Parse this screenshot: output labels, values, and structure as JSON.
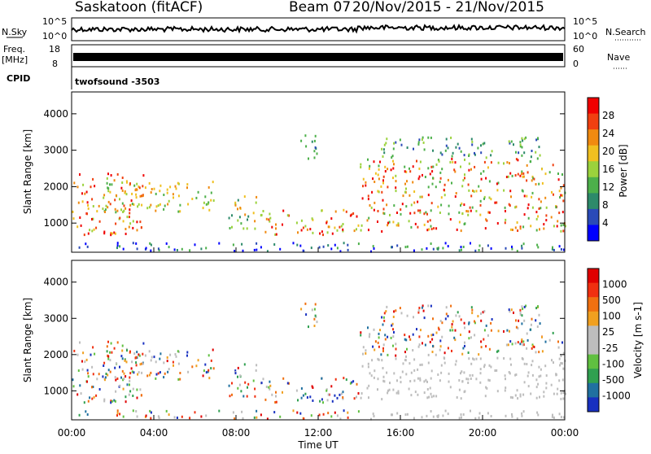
{
  "header": {
    "station": "Saskatoon (fitACF)",
    "beam": "Beam 07",
    "date_range": "20/Nov/2015 - 21/Nov/2015"
  },
  "strip_panels": {
    "nsky": {
      "label": "N.Sky",
      "tick_top": "10^5",
      "tick_bottom": "10^0"
    },
    "nsearch": {
      "label": "N.Search",
      "tick_top": "10^5",
      "tick_bottom": "10^0"
    },
    "freq": {
      "label_line1": "Freq.",
      "label_line2": "[MHz]",
      "tick_top": "18",
      "tick_bottom": "8"
    },
    "nave": {
      "label": "Nave",
      "tick_top": "60",
      "tick_bottom": "0"
    },
    "cpid": {
      "label": "CPID",
      "text": "twofsound -3503"
    }
  },
  "chart_data": [
    {
      "type": "heatmap",
      "name": "power-panel",
      "ylabel": "Slant Range [km]",
      "y_ticks": [
        "1000",
        "2000",
        "3000",
        "4000"
      ],
      "ylim": [
        200,
        4600
      ],
      "xlim_hours": [
        0,
        24
      ],
      "colorbar": {
        "label": "Power [dB]",
        "ticks": [
          "4",
          "8",
          "12",
          "16",
          "20",
          "24",
          "28"
        ],
        "colors": [
          "#0000ff",
          "#2a4ab8",
          "#2d8a6a",
          "#4db04a",
          "#9bd23c",
          "#f0c020",
          "#f08a10",
          "#f04010",
          "#f00000"
        ]
      }
    },
    {
      "type": "heatmap",
      "name": "velocity-panel",
      "ylabel": "Slant Range [km]",
      "y_ticks": [
        "1000",
        "2000",
        "3000",
        "4000"
      ],
      "ylim": [
        200,
        4600
      ],
      "xlim_hours": [
        0,
        24
      ],
      "colorbar": {
        "label": "Velocity [m s-1]",
        "ticks": [
          "1000",
          "500",
          "100",
          "25",
          "-25",
          "-100",
          "-500",
          "-1000"
        ],
        "colors": [
          "#1830c0",
          "#2070a0",
          "#30a050",
          "#60c040",
          "#bdbdbd",
          "#bdbdbd",
          "#f0a020",
          "#f07010",
          "#f03010",
          "#e00000"
        ]
      }
    }
  ],
  "x_axis": {
    "ticks": [
      "00:00",
      "04:00",
      "08:00",
      "12:00",
      "16:00",
      "20:00",
      "00:00"
    ],
    "label": "Time UT"
  }
}
